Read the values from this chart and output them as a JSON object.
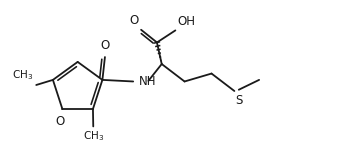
{
  "bg_color": "#ffffff",
  "line_color": "#1a1a1a",
  "line_width": 1.3,
  "font_size": 8.5,
  "figsize": [
    3.52,
    1.6
  ],
  "dpi": 100,
  "xlim": [
    0,
    10.5
  ],
  "ylim": [
    0,
    5.0
  ]
}
